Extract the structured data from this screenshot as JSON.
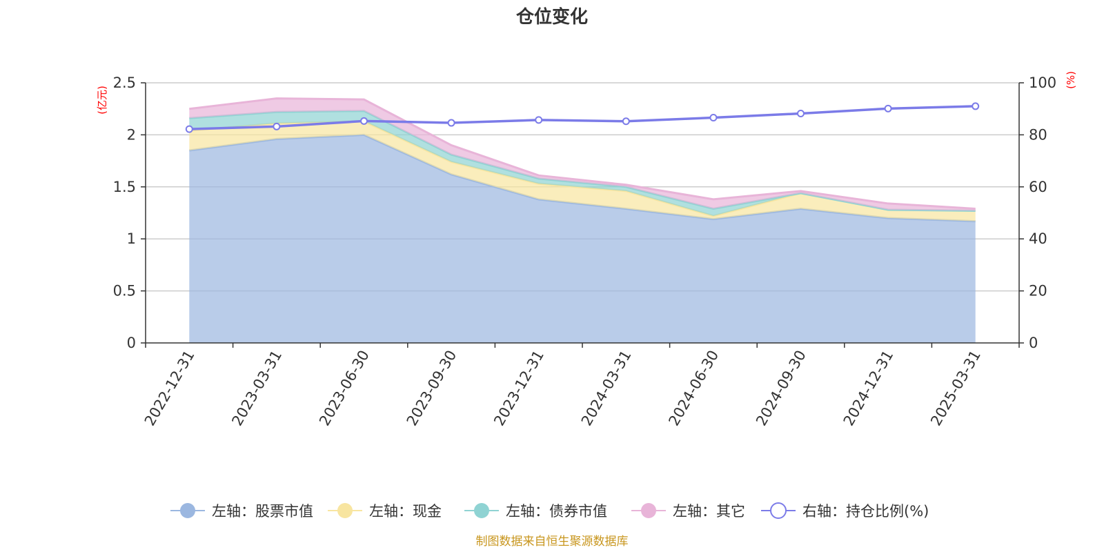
{
  "title": "仓位变化",
  "left_axis_unit": "(亿元)",
  "right_axis_unit": "(%)",
  "source_text": "制图数据来自恒生聚源数据库",
  "colors": {
    "stock": "#9bb7e0",
    "cash": "#f8e5a0",
    "bond": "#8fd3d3",
    "other": "#e8b4d8",
    "ratio": "#7b7be8"
  },
  "chart_data": {
    "type": "area",
    "title": "仓位变化",
    "categories": [
      "2022-12-31",
      "2023-03-31",
      "2023-06-30",
      "2023-09-30",
      "2023-12-31",
      "2024-03-31",
      "2024-06-30",
      "2024-09-30",
      "2024-12-31",
      "2025-03-31"
    ],
    "y_left": {
      "label": "(亿元)",
      "range": [
        0,
        2.5
      ],
      "ticks": [
        "0",
        "0.5",
        "1",
        "1.5",
        "2",
        "2.5"
      ],
      "tick_values": [
        0,
        0.5,
        1,
        1.5,
        2,
        2.5
      ]
    },
    "y_right": {
      "label": "(%)",
      "range": [
        0,
        100
      ],
      "ticks": [
        "0",
        "20",
        "40",
        "60",
        "80",
        "100"
      ],
      "tick_values": [
        0,
        20,
        40,
        60,
        80,
        100
      ]
    },
    "stacked": true,
    "series": [
      {
        "name": "左轴：股票市值",
        "axis": "left",
        "kind": "area",
        "color": "#9bb7e0",
        "values": [
          1.85,
          1.96,
          2.0,
          1.62,
          1.38,
          1.29,
          1.19,
          1.29,
          1.2,
          1.17
        ]
      },
      {
        "name": "左轴：现金",
        "axis": "left",
        "kind": "area",
        "color": "#f8e5a0",
        "values": [
          0.19,
          0.15,
          0.13,
          0.12,
          0.15,
          0.17,
          0.03,
          0.15,
          0.08,
          0.1
        ]
      },
      {
        "name": "左轴：债券市值",
        "axis": "left",
        "kind": "area",
        "color": "#8fd3d3",
        "values": [
          0.12,
          0.11,
          0.1,
          0.07,
          0.05,
          0.04,
          0.07,
          0.0,
          0.0,
          0.0
        ]
      },
      {
        "name": "左轴：其它",
        "axis": "left",
        "kind": "area",
        "color": "#e8b4d8",
        "values": [
          0.09,
          0.13,
          0.11,
          0.09,
          0.03,
          0.02,
          0.09,
          0.02,
          0.06,
          0.02
        ]
      },
      {
        "name": "右轴：持仓比例(%)",
        "axis": "right",
        "kind": "line",
        "color": "#7b7be8",
        "values": [
          82.2,
          83.2,
          85.3,
          84.6,
          85.7,
          85.2,
          86.6,
          88.2,
          90.1,
          91.0
        ]
      }
    ],
    "grid": true,
    "legend_position": "bottom"
  }
}
